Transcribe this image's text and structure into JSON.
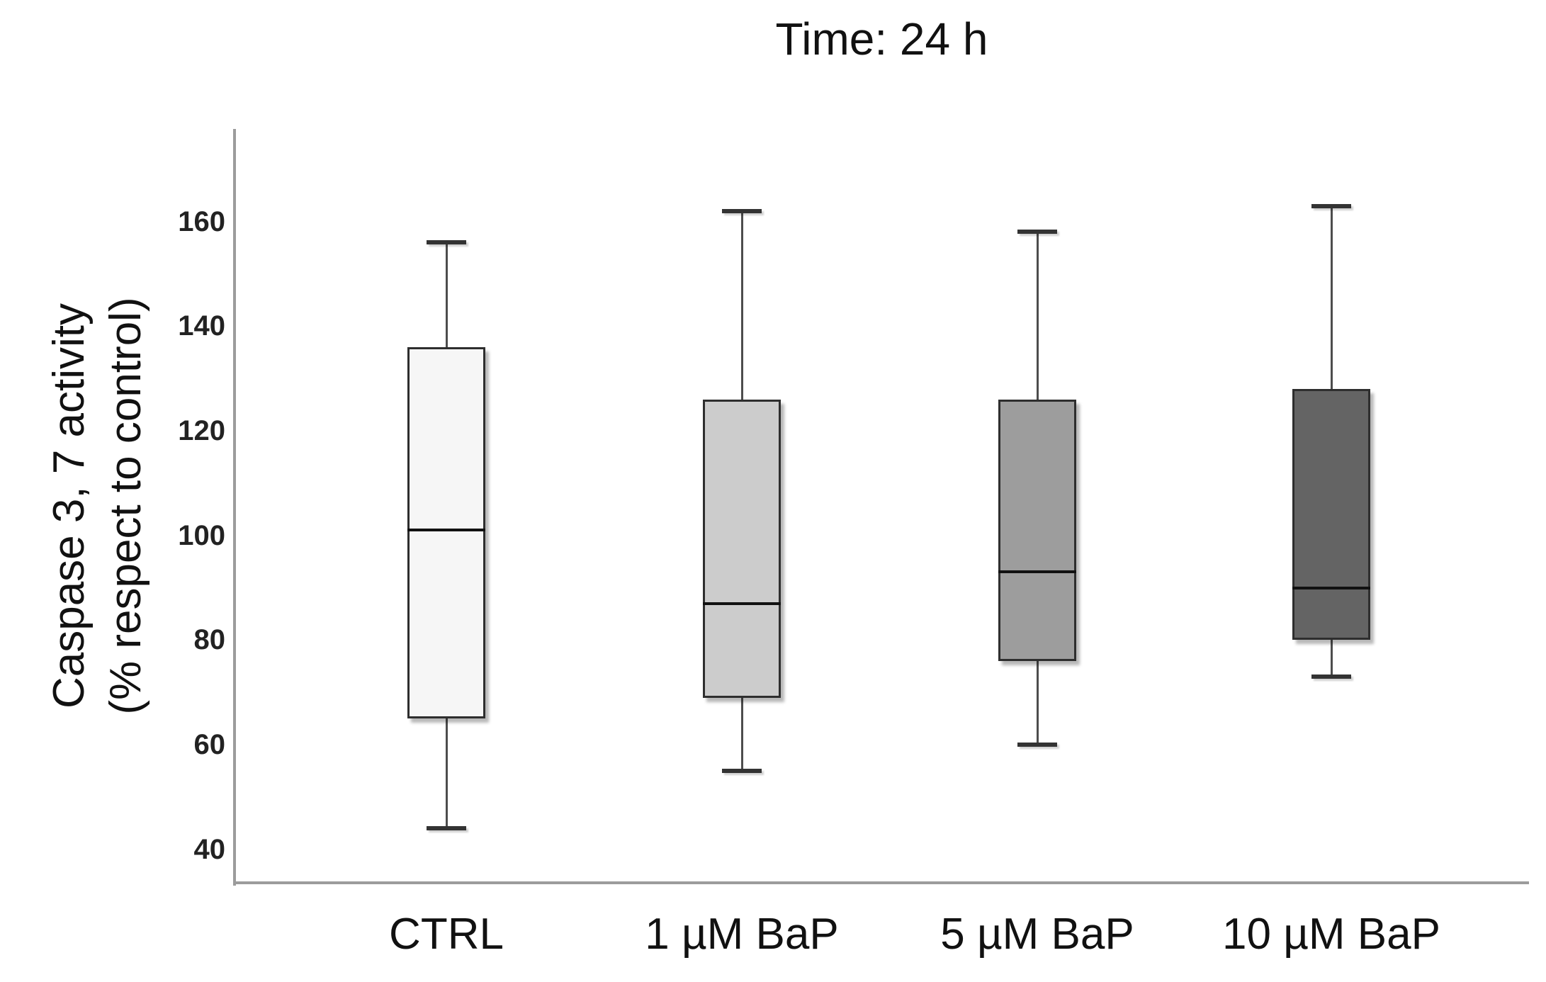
{
  "title": "Time: 24 h",
  "y_axis": {
    "label_line1": "Caspase 3, 7 activity",
    "label_line2": "(% respect to control)"
  },
  "chart_data": {
    "type": "boxplot",
    "title": "Time: 24 h",
    "ylabel": "Caspase 3, 7 activity (% respect to control)",
    "xlabel": "",
    "yticks": [
      40,
      60,
      80,
      100,
      120,
      140,
      160
    ],
    "ylim": [
      33.6,
      177.7
    ],
    "grid": false,
    "legend": "none",
    "categories": [
      "CTRL",
      "1 µM BaP",
      "5 µM BaP",
      "10 µM BaP"
    ],
    "series": [
      {
        "category": "CTRL",
        "whisker_low": 44,
        "q1": 65,
        "median": 101,
        "q3": 136,
        "whisker_high": 156,
        "fill": "#f6f6f6"
      },
      {
        "category": "1 µM BaP",
        "whisker_low": 55,
        "q1": 69,
        "median": 87,
        "q3": 126,
        "whisker_high": 162,
        "fill": "#cccccc"
      },
      {
        "category": "5 µM BaP",
        "whisker_low": 60,
        "q1": 76,
        "median": 93,
        "q3": 126,
        "whisker_high": 158,
        "fill": "#9d9d9d"
      },
      {
        "category": "10 µM BaP",
        "whisker_low": 73,
        "q1": 80,
        "median": 90,
        "q3": 128,
        "whisker_high": 163,
        "fill": "#646464"
      }
    ],
    "colors": {
      "box_border": "#2e2e2e",
      "median": "#111111",
      "whisker": "#4d4d4d",
      "axis": "#9c9c9c",
      "tick_text": "#222222",
      "label_text": "#111111",
      "background": "#ffffff"
    }
  }
}
